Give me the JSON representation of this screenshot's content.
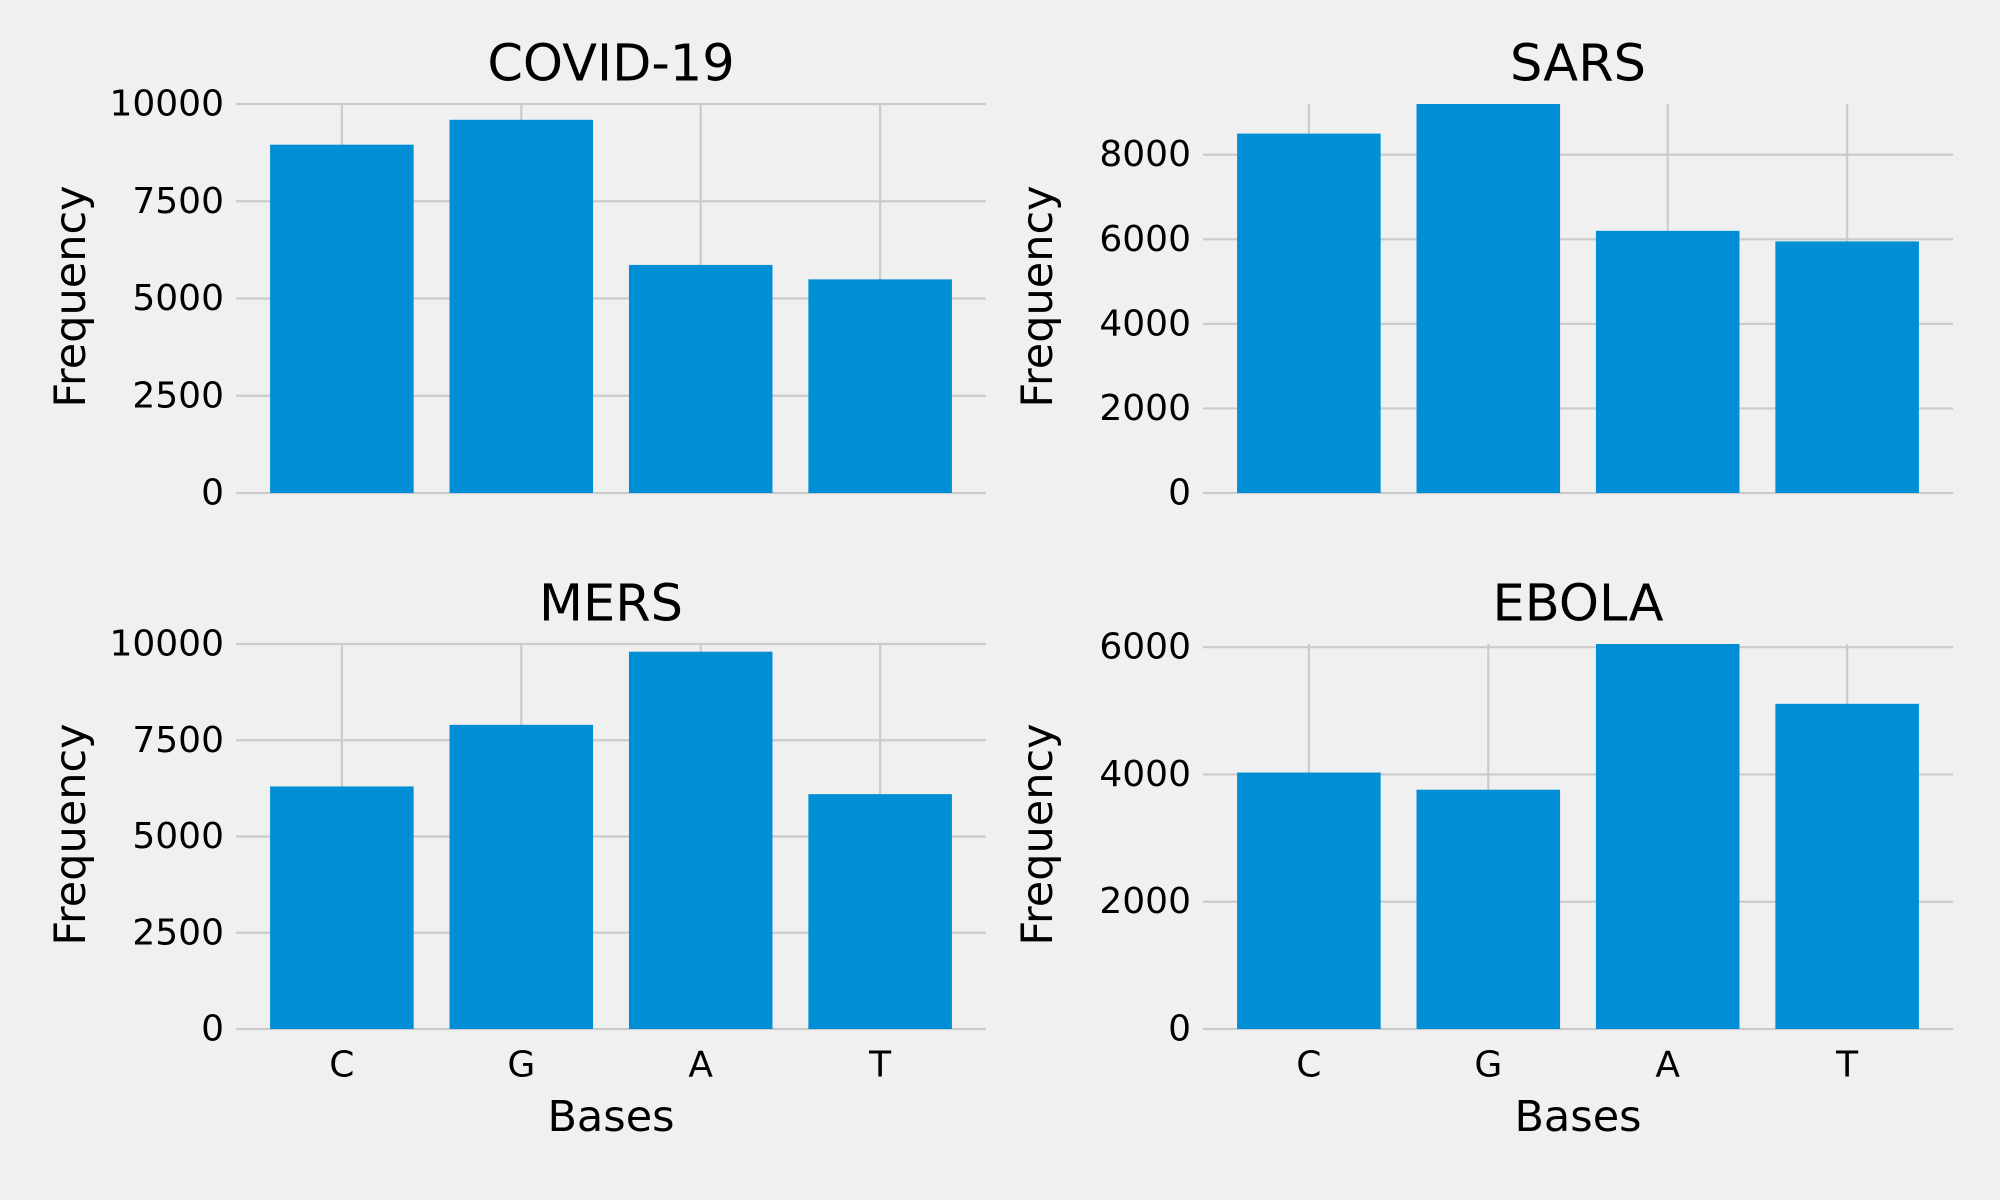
{
  "chart_data": [
    {
      "type": "bar",
      "title": "COVID-19",
      "categories": [
        "C",
        "G",
        "A",
        "T"
      ],
      "values": [
        8954,
        9594,
        5863,
        5492
      ],
      "ylabel": "Frequency",
      "xlabel": "",
      "ylim": [
        0,
        10000
      ],
      "yticks": [
        "0",
        "2500",
        "5000",
        "7500",
        "10000"
      ],
      "show_xticklabels": false,
      "grid": true,
      "color": "#008fd5"
    },
    {
      "type": "bar",
      "title": "SARS",
      "categories": [
        "C",
        "G",
        "A",
        "T"
      ],
      "values": [
        8500,
        9200,
        6200,
        5950
      ],
      "ylabel": "Frequency",
      "xlabel": "",
      "ylim": [
        0,
        9200
      ],
      "yticks": [
        "0",
        "2000",
        "4000",
        "6000",
        "8000"
      ],
      "show_xticklabels": false,
      "grid": true,
      "color": "#008fd5"
    },
    {
      "type": "bar",
      "title": "MERS",
      "categories": [
        "C",
        "G",
        "A",
        "T"
      ],
      "values": [
        6300,
        7900,
        9800,
        6100
      ],
      "ylabel": "Frequency",
      "xlabel": "Bases",
      "ylim": [
        0,
        10000
      ],
      "yticks": [
        "0",
        "2500",
        "5000",
        "7500",
        "10000"
      ],
      "show_xticklabels": true,
      "grid": true,
      "color": "#008fd5"
    },
    {
      "type": "bar",
      "title": "EBOLA",
      "categories": [
        "C",
        "G",
        "A",
        "T"
      ],
      "values": [
        4030,
        3760,
        6050,
        5110
      ],
      "ylabel": "Frequency",
      "xlabel": "Bases",
      "ylim": [
        0,
        6050
      ],
      "yticks": [
        "0",
        "2000",
        "4000",
        "6000"
      ],
      "show_xticklabels": true,
      "grid": true,
      "color": "#008fd5"
    }
  ]
}
